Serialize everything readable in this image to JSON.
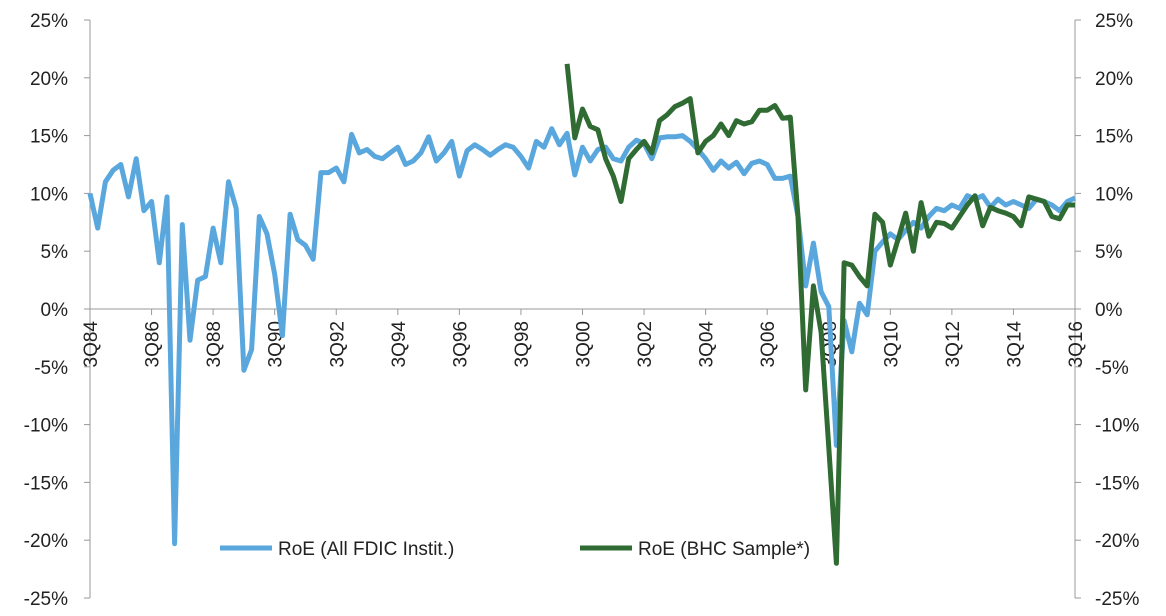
{
  "chart_data": {
    "type": "line",
    "categories": [
      "3Q84",
      null,
      null,
      null,
      null,
      null,
      null,
      null,
      "3Q86",
      null,
      null,
      null,
      null,
      null,
      null,
      null,
      "3Q88",
      null,
      null,
      null,
      null,
      null,
      null,
      null,
      "3Q90",
      null,
      null,
      null,
      null,
      null,
      null,
      null,
      "3Q92",
      null,
      null,
      null,
      null,
      null,
      null,
      null,
      "3Q94",
      null,
      null,
      null,
      null,
      null,
      null,
      null,
      "3Q96",
      null,
      null,
      null,
      null,
      null,
      null,
      null,
      "3Q98",
      null,
      null,
      null,
      null,
      null,
      null,
      null,
      "3Q00",
      null,
      null,
      null,
      null,
      null,
      null,
      null,
      "3Q02",
      null,
      null,
      null,
      null,
      null,
      null,
      null,
      "3Q04",
      null,
      null,
      null,
      null,
      null,
      null,
      null,
      "3Q06",
      null,
      null,
      null,
      null,
      null,
      null,
      null,
      "3Q08",
      null,
      null,
      null,
      null,
      null,
      null,
      null,
      "3Q10",
      null,
      null,
      null,
      null,
      null,
      null,
      null,
      "3Q12",
      null,
      null,
      null,
      null,
      null,
      null,
      null,
      "3Q14",
      null,
      null,
      null,
      null,
      null,
      null,
      null,
      "3Q16"
    ],
    "series": [
      {
        "name": "RoE (All FDIC Instit.)",
        "color": "#5aa7de",
        "values": [
          10,
          7,
          11,
          12,
          12.5,
          9.7,
          13,
          8.5,
          9.3,
          4,
          9.7,
          -20.3,
          7.3,
          -2.7,
          2.5,
          2.8,
          7,
          4,
          11,
          8.7,
          -5.3,
          -3.5,
          8,
          6.5,
          3,
          -2.3,
          8.2,
          6,
          5.5,
          4.3,
          11.8,
          11.8,
          12.2,
          11,
          15.1,
          13.5,
          13.8,
          13.2,
          13,
          13.5,
          14,
          12.5,
          12.8,
          13.5,
          14.9,
          12.8,
          13.5,
          14.5,
          11.5,
          13.7,
          14.2,
          13.8,
          13.3,
          13.8,
          14.2,
          14,
          13.2,
          12.2,
          14.5,
          14,
          15.6,
          14.2,
          15.2,
          11.6,
          14,
          12.8,
          13.8,
          14,
          13,
          12.8,
          14,
          14.6,
          14.3,
          13,
          14.8,
          14.9,
          14.9,
          15,
          14.5,
          13.8,
          13,
          12,
          12.8,
          12.2,
          12.7,
          11.7,
          12.6,
          12.8,
          12.5,
          11.3,
          11.3,
          11.5,
          8,
          2,
          5.7,
          1.5,
          0.2,
          -11.8,
          -1,
          -3.7,
          0.5,
          -0.5,
          5,
          5.8,
          6.5,
          6,
          6.8,
          7.5,
          7,
          8,
          8.7,
          8.5,
          9,
          8.7,
          9.8,
          9.5,
          9.8,
          8.8,
          9.5,
          9,
          9.3,
          9,
          8.7,
          9.5,
          9.3,
          9,
          8.5,
          9.3,
          9.6
        ]
      },
      {
        "name": "RoE (BHC Sample*)",
        "color": "#2f6b32",
        "values": [
          null,
          null,
          null,
          null,
          null,
          null,
          null,
          null,
          null,
          null,
          null,
          null,
          null,
          null,
          null,
          null,
          null,
          null,
          null,
          null,
          null,
          null,
          null,
          null,
          null,
          null,
          null,
          null,
          null,
          null,
          null,
          null,
          null,
          null,
          null,
          null,
          null,
          null,
          null,
          null,
          null,
          null,
          null,
          null,
          null,
          null,
          null,
          null,
          null,
          null,
          null,
          null,
          null,
          null,
          null,
          null,
          null,
          null,
          null,
          null,
          null,
          null,
          21.2,
          14.8,
          17.3,
          15.8,
          15.5,
          13,
          11.5,
          9.3,
          13,
          13.8,
          14.5,
          13.5,
          16.3,
          16.8,
          17.5,
          17.8,
          18.2,
          13.5,
          14.5,
          15,
          16,
          15,
          16.3,
          16,
          16.2,
          17.2,
          17.2,
          17.6,
          16.5,
          16.6,
          8,
          -7,
          2,
          -2,
          -12,
          -22,
          4,
          3.8,
          2.8,
          2,
          8.2,
          7.5,
          3.8,
          6,
          8.3,
          5,
          9.2,
          6.3,
          7.5,
          7.4,
          7,
          8,
          9,
          9.8,
          7.2,
          8.8,
          8.5,
          8.3,
          8,
          7.2,
          9.7,
          9.5,
          9.3,
          8,
          7.8,
          9,
          9
        ]
      }
    ],
    "ylim": [
      -25,
      25
    ],
    "yticks": [
      {
        "value": -25,
        "label": "-25%"
      },
      {
        "value": -20,
        "label": "-20%"
      },
      {
        "value": -15,
        "label": "-15%"
      },
      {
        "value": -10,
        "label": "-10%"
      },
      {
        "value": -5,
        "label": "-5%"
      },
      {
        "value": 0,
        "label": "0%"
      },
      {
        "value": 5,
        "label": "5%"
      },
      {
        "value": 10,
        "label": "10%"
      },
      {
        "value": 15,
        "label": "15%"
      },
      {
        "value": 20,
        "label": "20%"
      },
      {
        "value": 25,
        "label": "25%"
      }
    ],
    "y2lim": [
      -25,
      25
    ],
    "y2ticks": [
      {
        "value": -25,
        "label": "-25%"
      },
      {
        "value": -20,
        "label": "-20%"
      },
      {
        "value": -15,
        "label": "-15%"
      },
      {
        "value": -10,
        "label": "-10%"
      },
      {
        "value": -5,
        "label": "-5%"
      },
      {
        "value": 0,
        "label": "0%"
      },
      {
        "value": 5,
        "label": "5%"
      },
      {
        "value": 10,
        "label": "10%"
      },
      {
        "value": 15,
        "label": "15%"
      },
      {
        "value": 20,
        "label": "20%"
      },
      {
        "value": 25,
        "label": "25%"
      }
    ],
    "grid": false,
    "legend": "lower center"
  }
}
